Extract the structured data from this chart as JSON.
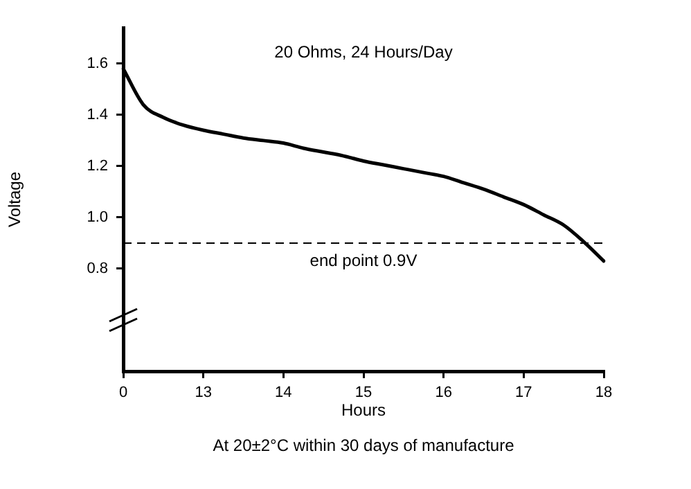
{
  "chart_data": {
    "type": "line",
    "title": "20 Ohms, 24 Hours/Day",
    "xlabel": "Hours",
    "ylabel": "Voltage",
    "annotations": [
      "At 20±2°C within 30 days of manufacture"
    ],
    "categories": [
      "0",
      null,
      null,
      null,
      "13",
      null,
      null,
      null,
      "14",
      null,
      null,
      null,
      "15",
      null,
      null,
      null,
      "16",
      null,
      null,
      null,
      "17",
      null,
      null,
      null,
      "18"
    ],
    "series": [
      {
        "color": "#000000",
        "values": [
          1.58,
          1.44,
          1.39,
          1.36,
          1.34,
          1.325,
          1.31,
          1.3,
          1.29,
          1.27,
          1.255,
          1.24,
          1.22,
          1.205,
          1.19,
          1.175,
          1.16,
          1.135,
          1.11,
          1.08,
          1.05,
          1.01,
          0.97,
          0.905,
          0.83
        ]
      }
    ],
    "ylim": [
      0.4,
      1.74
    ],
    "yticks": [
      0.8,
      {
        "value": 1,
        "label": "1.0"
      },
      1.2,
      1.4,
      1.6
    ],
    "ref_lines": [
      {
        "axis": "y",
        "value": 0.9,
        "label": "end point 0.9V",
        "line_style": "dashed",
        "color": "#000000"
      }
    ],
    "grid": false,
    "legend": false,
    "marker": "none",
    "line_style": "solid"
  }
}
